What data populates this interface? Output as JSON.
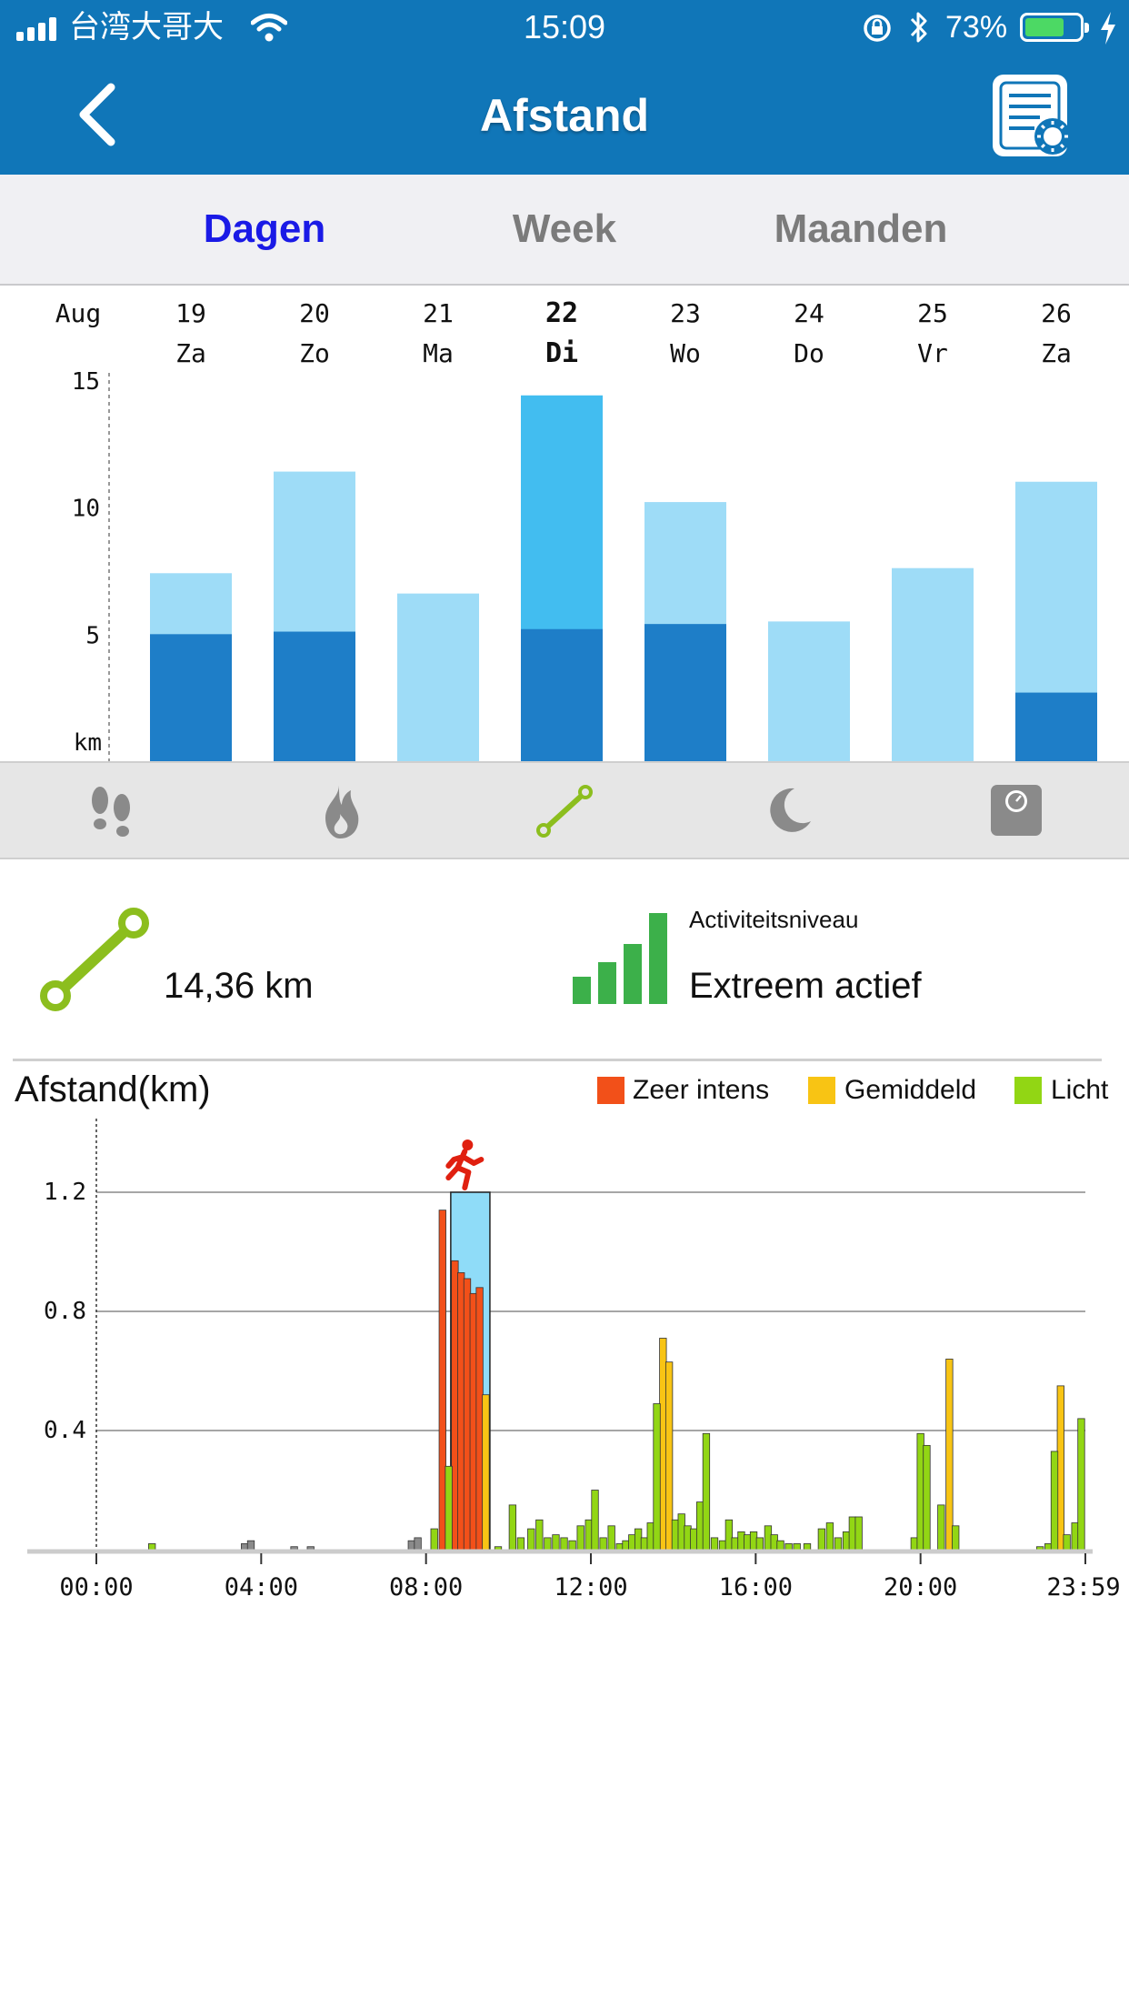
{
  "status_bar": {
    "carrier": "台湾大哥大",
    "time": "15:09",
    "battery": "73%",
    "battery_level": 0.73
  },
  "nav": {
    "title": "Afstand",
    "back_icon": "chevron-left-icon",
    "report_icon": "report-settings-icon"
  },
  "tabs": [
    {
      "label": "Dagen",
      "active": true
    },
    {
      "label": "Week",
      "active": false
    },
    {
      "label": "Maanden",
      "active": false
    }
  ],
  "colors": {
    "header": "#1076b8",
    "tab_active": "#1a1ae6",
    "tab_inactive": "#7b7b7b",
    "bar_light": "#9edcf7",
    "bar_dark": "#1e7ec8",
    "bar_selected": "#42bdf0",
    "intense": "#f25019",
    "medium": "#f8c414",
    "light": "#92d614",
    "inactive": "#8a8a8a",
    "green_icon": "#8cbe1e",
    "level_green": "#3cb04a"
  },
  "daily_chart": {
    "month": "Aug",
    "unit": "km",
    "y_ticks": [
      "15",
      "10",
      "5"
    ],
    "ylim": [
      0,
      15
    ],
    "days": [
      {
        "date": "19",
        "weekday": "Za",
        "total": 7.4,
        "dark": 5.0,
        "selected": false
      },
      {
        "date": "20",
        "weekday": "Zo",
        "total": 11.4,
        "dark": 5.1,
        "selected": false
      },
      {
        "date": "21",
        "weekday": "Ma",
        "total": 6.6,
        "dark": 0,
        "selected": false
      },
      {
        "date": "22",
        "weekday": "Di",
        "total": 14.4,
        "dark": 5.2,
        "selected": true
      },
      {
        "date": "23",
        "weekday": "Wo",
        "total": 10.2,
        "dark": 5.4,
        "selected": false
      },
      {
        "date": "24",
        "weekday": "Do",
        "total": 5.5,
        "dark": 0,
        "selected": false
      },
      {
        "date": "25",
        "weekday": "Vr",
        "total": 7.6,
        "dark": 0,
        "selected": false
      },
      {
        "date": "26",
        "weekday": "Za",
        "total": 11.0,
        "dark": 2.7,
        "selected": false
      }
    ]
  },
  "metric_icons": [
    {
      "name": "footprints-icon",
      "active": false
    },
    {
      "name": "flame-icon",
      "active": false
    },
    {
      "name": "distance-icon",
      "active": true
    },
    {
      "name": "moon-icon",
      "active": false
    },
    {
      "name": "scale-icon",
      "active": false
    }
  ],
  "summary": {
    "distance": "14,36 km",
    "level_label": "Activiteitsniveau",
    "level_value": "Extreem actief"
  },
  "chart_data": {
    "type": "bar",
    "title": "Afstand(km)",
    "legend": [
      "Zeer intens",
      "Gemiddeld",
      "Licht"
    ],
    "legend_placement": "top-right",
    "y_ticks": [
      "1.2",
      "0.8",
      "0.4"
    ],
    "ylim": [
      0,
      1.3
    ],
    "x_ticks": [
      "00:00",
      "04:00",
      "08:00",
      "12:00",
      "16:00",
      "20:00",
      "23:59"
    ],
    "x_unit": "hour of day",
    "xlim": [
      0,
      24
    ],
    "highlight": {
      "start": 8.6,
      "end": 9.55,
      "label": "running"
    },
    "series": [
      {
        "name": "Zeer intens",
        "values": [
          [
            8.4,
            1.14
          ],
          [
            8.7,
            0.97
          ],
          [
            8.85,
            0.93
          ],
          [
            9.0,
            0.91
          ],
          [
            9.15,
            0.86
          ],
          [
            9.3,
            0.88
          ]
        ]
      },
      {
        "name": "Gemiddeld",
        "values": [
          [
            9.45,
            0.52
          ],
          [
            13.75,
            0.71
          ],
          [
            13.9,
            0.63
          ],
          [
            20.7,
            0.64
          ],
          [
            23.4,
            0.55
          ]
        ]
      },
      {
        "name": "Licht",
        "values": [
          [
            1.35,
            0.02
          ],
          [
            8.2,
            0.07
          ],
          [
            8.55,
            0.28
          ],
          [
            9.75,
            0.01
          ],
          [
            10.1,
            0.15
          ],
          [
            10.3,
            0.04
          ],
          [
            10.55,
            0.07
          ],
          [
            10.75,
            0.1
          ],
          [
            10.95,
            0.04
          ],
          [
            11.15,
            0.05
          ],
          [
            11.35,
            0.04
          ],
          [
            11.55,
            0.03
          ],
          [
            11.75,
            0.08
          ],
          [
            11.95,
            0.1
          ],
          [
            12.1,
            0.2
          ],
          [
            12.3,
            0.04
          ],
          [
            12.5,
            0.08
          ],
          [
            12.7,
            0.02
          ],
          [
            12.85,
            0.03
          ],
          [
            13.0,
            0.05
          ],
          [
            13.15,
            0.07
          ],
          [
            13.3,
            0.04
          ],
          [
            13.45,
            0.09
          ],
          [
            13.6,
            0.49
          ],
          [
            14.05,
            0.1
          ],
          [
            14.2,
            0.12
          ],
          [
            14.35,
            0.08
          ],
          [
            14.5,
            0.07
          ],
          [
            14.65,
            0.16
          ],
          [
            14.8,
            0.39
          ],
          [
            15.0,
            0.04
          ],
          [
            15.2,
            0.03
          ],
          [
            15.35,
            0.1
          ],
          [
            15.5,
            0.04
          ],
          [
            15.65,
            0.06
          ],
          [
            15.8,
            0.05
          ],
          [
            15.95,
            0.06
          ],
          [
            16.1,
            0.04
          ],
          [
            16.3,
            0.08
          ],
          [
            16.45,
            0.05
          ],
          [
            16.6,
            0.03
          ],
          [
            16.8,
            0.02
          ],
          [
            17.0,
            0.02
          ],
          [
            17.25,
            0.02
          ],
          [
            17.6,
            0.07
          ],
          [
            17.8,
            0.09
          ],
          [
            18.0,
            0.04
          ],
          [
            18.2,
            0.06
          ],
          [
            18.35,
            0.11
          ],
          [
            18.5,
            0.11
          ],
          [
            19.85,
            0.04
          ],
          [
            20.0,
            0.39
          ],
          [
            20.15,
            0.35
          ],
          [
            20.5,
            0.15
          ],
          [
            20.85,
            0.08
          ],
          [
            22.9,
            0.01
          ],
          [
            23.1,
            0.02
          ],
          [
            23.25,
            0.33
          ],
          [
            23.55,
            0.05
          ],
          [
            23.75,
            0.09
          ],
          [
            23.9,
            0.44
          ]
        ]
      },
      {
        "name": "inactive",
        "values": [
          [
            3.6,
            0.02
          ],
          [
            3.75,
            0.03
          ],
          [
            4.8,
            0.01
          ],
          [
            5.2,
            0.01
          ],
          [
            7.65,
            0.03
          ],
          [
            7.8,
            0.04
          ]
        ]
      }
    ]
  }
}
